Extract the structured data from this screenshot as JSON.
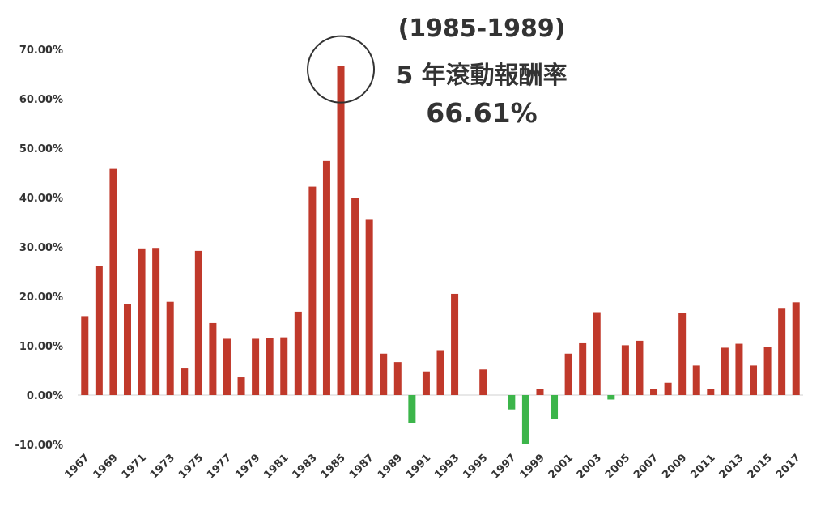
{
  "chart_data": {
    "type": "bar",
    "categories": [
      "1967",
      "1968",
      "1969",
      "1970",
      "1971",
      "1972",
      "1973",
      "1974",
      "1975",
      "1976",
      "1977",
      "1978",
      "1979",
      "1980",
      "1981",
      "1982",
      "1983",
      "1984",
      "1985",
      "1986",
      "1987",
      "1988",
      "1989",
      "1990",
      "1991",
      "1992",
      "1993",
      "1994",
      "1995",
      "1996",
      "1997",
      "1998",
      "1999",
      "2000",
      "2001",
      "2002",
      "2003",
      "2004",
      "2005",
      "2006",
      "2007",
      "2008",
      "2009",
      "2010",
      "2011",
      "2012",
      "2013",
      "2014",
      "2015",
      "2016",
      "2017"
    ],
    "x_tick_labels": [
      "1967",
      "1969",
      "1971",
      "1973",
      "1975",
      "1977",
      "1979",
      "1981",
      "1983",
      "1985",
      "1987",
      "1989",
      "1991",
      "1993",
      "1995",
      "1997",
      "1999",
      "2001",
      "2003",
      "2005",
      "2007",
      "2009",
      "2011",
      "2013",
      "2015",
      "2017"
    ],
    "values": [
      16.0,
      26.2,
      45.8,
      18.5,
      29.7,
      29.8,
      18.9,
      5.4,
      29.2,
      14.6,
      11.4,
      3.6,
      11.4,
      11.5,
      11.7,
      16.9,
      42.2,
      47.4,
      66.61,
      40.0,
      35.5,
      8.4,
      6.7,
      -5.6,
      4.8,
      9.1,
      20.5,
      0.0,
      5.2,
      0.0,
      -2.9,
      -9.9,
      1.2,
      -4.8,
      8.4,
      10.5,
      16.8,
      -0.9,
      10.1,
      11.0,
      1.2,
      2.5,
      16.7,
      6.0,
      1.3,
      9.6,
      10.4,
      6.0,
      9.7,
      17.5,
      18.8
    ],
    "y_tick_labels": [
      "-10.00%",
      "0.00%",
      "10.00%",
      "20.00%",
      "30.00%",
      "40.00%",
      "50.00%",
      "60.00%",
      "70.00%"
    ],
    "ylim": [
      -10,
      70
    ],
    "positive_color": "#c0392b",
    "negative_color": "#3cb54a",
    "highlight": "1985",
    "annotation": {
      "line1": "(1985-1989)",
      "line2": "5 年滾動報酬率",
      "line3": "66.61%"
    },
    "grid": false,
    "title": "",
    "xlabel": "",
    "ylabel": ""
  }
}
